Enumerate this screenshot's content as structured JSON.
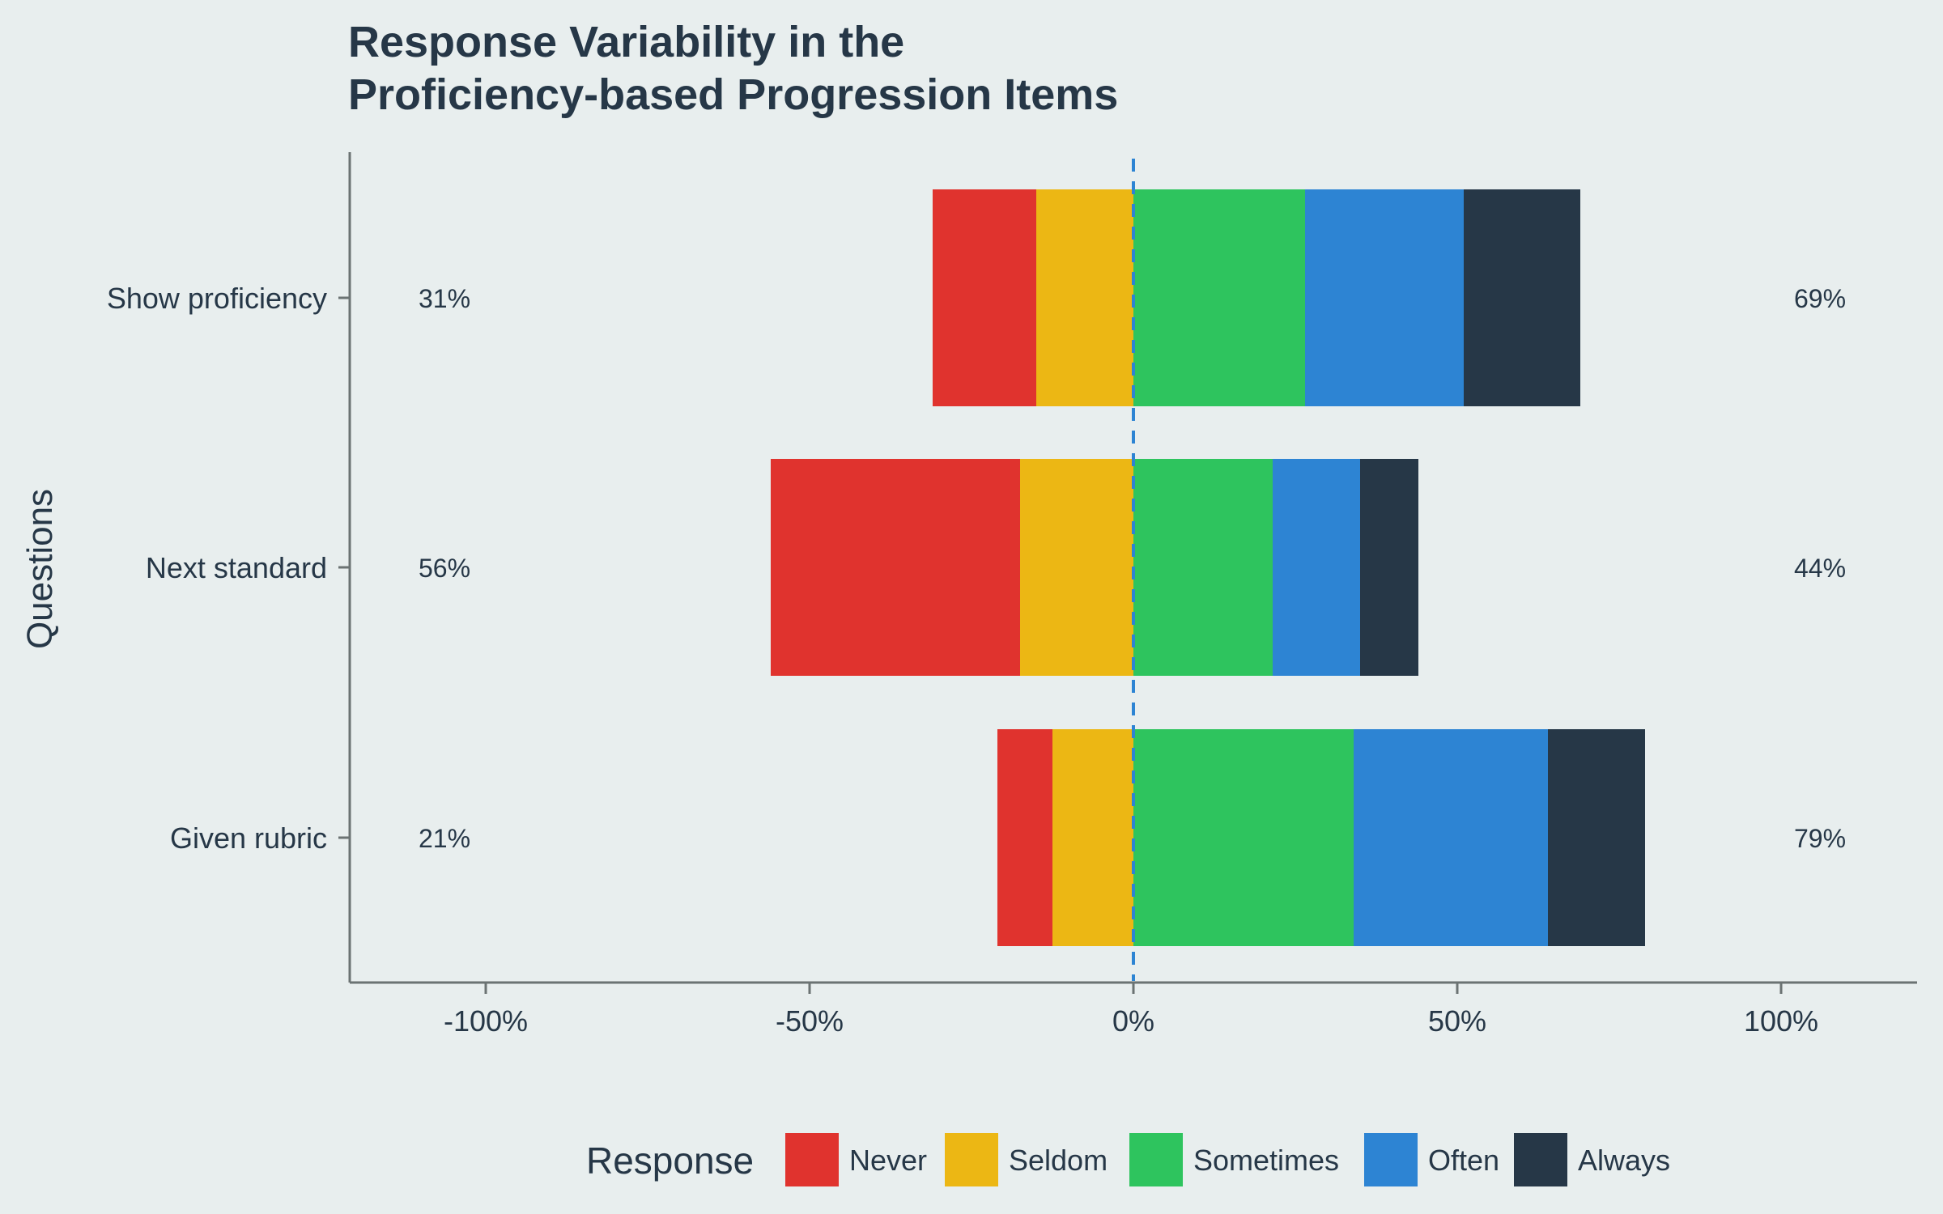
{
  "chart_data": {
    "type": "bar",
    "orientation": "horizontal",
    "stacked": "diverging",
    "title": "Response Variability in the\nProficiency-based Progression Items",
    "ylabel": "Questions",
    "xlabel": "",
    "xlim": [
      -1.2,
      1.2
    ],
    "x_ticks": [
      -1,
      -0.5,
      0,
      0.5,
      1
    ],
    "x_tick_labels": [
      "-100%",
      "-50%",
      "0%",
      "50%",
      "100%"
    ],
    "categories": [
      "Show proficiency",
      "Next standard",
      "Given rubric"
    ],
    "series": [
      {
        "name": "Never",
        "color": "#e0332e",
        "side": "negative",
        "values": [
          0.16,
          0.385,
          0.085
        ]
      },
      {
        "name": "Seldom",
        "color": "#ecb714",
        "side": "negative",
        "values": [
          0.15,
          0.175,
          0.125
        ]
      },
      {
        "name": "Sometimes",
        "color": "#2ec45e",
        "side": "positive",
        "values": [
          0.265,
          0.215,
          0.34
        ]
      },
      {
        "name": "Often",
        "color": "#2d84d3",
        "side": "positive",
        "values": [
          0.245,
          0.135,
          0.3
        ]
      },
      {
        "name": "Always",
        "color": "#263747",
        "side": "positive",
        "values": [
          0.18,
          0.09,
          0.15
        ]
      }
    ],
    "left_labels": [
      "31%",
      "56%",
      "21%"
    ],
    "right_labels": [
      "69%",
      "44%",
      "79%"
    ],
    "zero_line": {
      "color": "#2d84d3",
      "style": "dashed"
    },
    "legend": {
      "title": "Response",
      "position": "bottom"
    },
    "grid": false
  },
  "colors": {
    "background": "#e8eeee",
    "axis": "#6b7373",
    "text": "#263747"
  }
}
